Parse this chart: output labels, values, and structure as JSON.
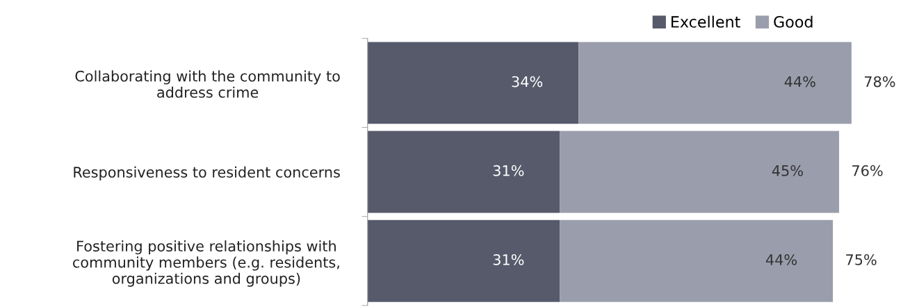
{
  "chart_data": {
    "type": "bar",
    "orientation": "horizontal",
    "stacked": true,
    "categories": [
      "Collaborating with the community to\naddress crime",
      "Responsiveness to resident concerns",
      "Fostering positive relationships with\ncommunity members (e.g. residents,\norganizations and groups)"
    ],
    "series": [
      {
        "name": "Excellent",
        "color": "#575a6b",
        "values": [
          34,
          31,
          31
        ],
        "value_labels": [
          "34%",
          "31%",
          "31%"
        ]
      },
      {
        "name": "Good",
        "color": "#9a9dac",
        "values": [
          44,
          45,
          44
        ],
        "value_labels": [
          "44%",
          "45%",
          "44%"
        ]
      }
    ],
    "totals": [
      "78%",
      "76%",
      "75%"
    ],
    "legend": "top right",
    "grid": false
  }
}
